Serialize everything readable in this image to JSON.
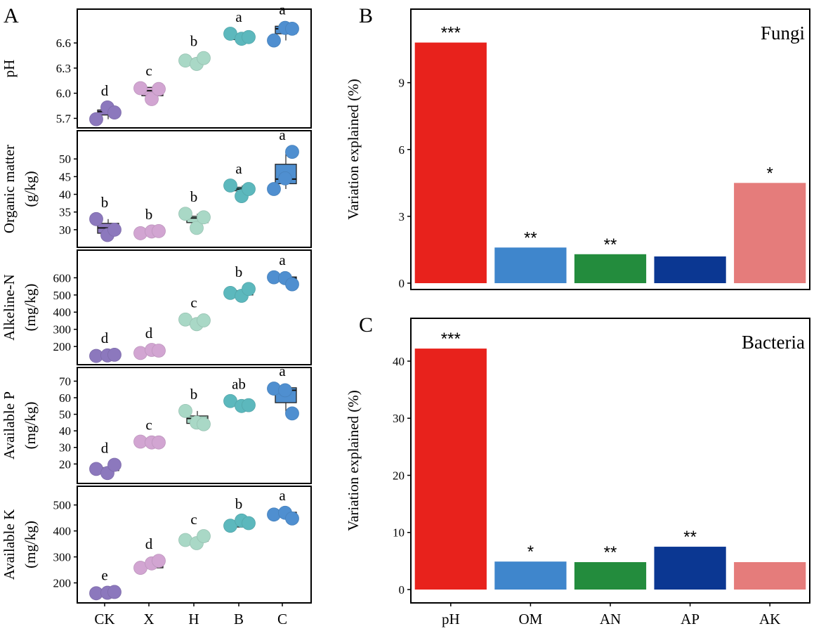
{
  "chart_data": [
    {
      "id": "A",
      "panel_label": "A",
      "type": "box-dot",
      "groups": [
        "CK",
        "X",
        "H",
        "B",
        "C"
      ],
      "group_colors": {
        "CK": "#8c78bd",
        "X": "#d2a5d2",
        "H": "#a9d8c6",
        "B": "#5cb8bd",
        "C": "#4f8fd0"
      },
      "subplots": [
        {
          "name": "ph",
          "ylabel_lines": [
            "pH"
          ],
          "ylim": [
            5.67,
            6.92
          ],
          "yticks": [
            5.7,
            6.0,
            6.3,
            6.6
          ],
          "ytick_labels": [
            "5.7",
            "6.0",
            "6.3",
            "6.6"
          ],
          "groups": [
            {
              "group": "CK",
              "points": [
                5.69,
                5.83,
                5.77
              ],
              "box": [
                5.74,
                5.78,
                5.8
              ],
              "letter": "d"
            },
            {
              "group": "X",
              "points": [
                6.06,
                5.93,
                6.05
              ],
              "box": [
                5.97,
                6.03,
                6.07
              ],
              "letter": "c"
            },
            {
              "group": "H",
              "points": [
                6.39,
                6.35,
                6.42
              ],
              "box": [
                6.37,
                6.39,
                6.41
              ],
              "letter": "b"
            },
            {
              "group": "B",
              "points": [
                6.71,
                6.65,
                6.67
              ],
              "box": [
                6.64,
                6.66,
                6.68
              ],
              "letter": "a"
            },
            {
              "group": "C",
              "points": [
                6.63,
                6.78,
                6.77
              ],
              "box": [
                6.71,
                6.77,
                6.8
              ],
              "letter": "a"
            }
          ]
        },
        {
          "name": "organic-matter",
          "ylabel_lines": [
            "Organic matter",
            "(g/kg)"
          ],
          "ylim": [
            27,
            56
          ],
          "yticks": [
            30,
            35,
            40,
            45,
            50
          ],
          "ytick_labels": [
            "30",
            "35",
            "40",
            "45",
            "50"
          ],
          "groups": [
            {
              "group": "CK",
              "points": [
                33,
                28.5,
                30
              ],
              "box": [
                29,
                30.5,
                31.8
              ],
              "letter": "b"
            },
            {
              "group": "X",
              "points": [
                29,
                29.5,
                29.6
              ],
              "box": [
                29.2,
                29.4,
                29.6
              ],
              "letter": "b"
            },
            {
              "group": "H",
              "points": [
                34.5,
                30.5,
                33.5
              ],
              "box": [
                32,
                33.3,
                33.8
              ],
              "letter": "b"
            },
            {
              "group": "B",
              "points": [
                42.5,
                39.5,
                41.5
              ],
              "box": [
                41,
                41.5,
                42
              ],
              "letter": "a"
            },
            {
              "group": "C",
              "points": [
                41.5,
                44.5,
                52
              ],
              "box": [
                43,
                44.3,
                48.5
              ],
              "letter": "a"
            }
          ]
        },
        {
          "name": "alkeline-n",
          "ylabel_lines": [
            "Alkeline-N",
            "(mg/kg)"
          ],
          "ylim": [
            135,
            720
          ],
          "yticks": [
            200,
            300,
            400,
            500,
            600
          ],
          "ytick_labels": [
            "200",
            "300",
            "400",
            "500",
            "600"
          ],
          "groups": [
            {
              "group": "CK",
              "points": [
                145,
                148,
                152
              ],
              "box": [
                145,
                148,
                150
              ],
              "letter": "d"
            },
            {
              "group": "X",
              "points": [
                162,
                180,
                176
              ],
              "box": [
                170,
                173,
                176
              ],
              "letter": "d"
            },
            {
              "group": "H",
              "points": [
                357,
                330,
                352
              ],
              "box": [
                340,
                345,
                352
              ],
              "letter": "c"
            },
            {
              "group": "B",
              "points": [
                512,
                495,
                535
              ],
              "box": [
                500,
                510,
                525
              ],
              "letter": "b"
            },
            {
              "group": "C",
              "points": [
                603,
                598,
                562
              ],
              "box": [
                585,
                598,
                605
              ],
              "letter": "a"
            }
          ]
        },
        {
          "name": "available-p",
          "ylabel_lines": [
            "Available P",
            "(mg/kg)"
          ],
          "ylim": [
            12.5,
            74
          ],
          "yticks": [
            20,
            30,
            40,
            50,
            60,
            70
          ],
          "ytick_labels": [
            "20",
            "30",
            "40",
            "50",
            "60",
            "70"
          ],
          "groups": [
            {
              "group": "CK",
              "points": [
                17,
                14.5,
                19.5
              ],
              "box": [
                16,
                16.8,
                17.8
              ],
              "letter": "d"
            },
            {
              "group": "X",
              "points": [
                33.5,
                33,
                33
              ],
              "box": [
                33,
                33.3,
                33.6
              ],
              "letter": "c"
            },
            {
              "group": "H",
              "points": [
                52,
                45,
                44
              ],
              "box": [
                44.5,
                47.5,
                49
              ],
              "letter": "b"
            },
            {
              "group": "B",
              "points": [
                58,
                55,
                55.5
              ],
              "box": [
                55,
                56,
                56.5
              ],
              "letter": "ab"
            },
            {
              "group": "C",
              "points": [
                65.5,
                64.5,
                50.5
              ],
              "box": [
                57,
                64.5,
                66
              ],
              "letter": "a"
            }
          ]
        },
        {
          "name": "available-k",
          "ylabel_lines": [
            "Available K",
            "(mg/kg)"
          ],
          "ylim": [
            150,
            545
          ],
          "yticks": [
            200,
            300,
            400,
            500
          ],
          "ytick_labels": [
            "200",
            "300",
            "400",
            "500"
          ],
          "groups": [
            {
              "group": "CK",
              "points": [
                160,
                162,
                165
              ],
              "box": [
                160,
                162,
                165
              ],
              "letter": "e"
            },
            {
              "group": "X",
              "points": [
                258,
                275,
                285
              ],
              "box": [
                258,
                264,
                272
              ],
              "letter": "d"
            },
            {
              "group": "H",
              "points": [
                365,
                353,
                380
              ],
              "box": [
                360,
                365,
                370
              ],
              "letter": "c"
            },
            {
              "group": "B",
              "points": [
                420,
                440,
                430
              ],
              "box": [
                415,
                425,
                430
              ],
              "letter": "b"
            },
            {
              "group": "C",
              "points": [
                463,
                470,
                448
              ],
              "box": [
                460,
                466,
                472
              ],
              "letter": "a"
            }
          ]
        }
      ]
    },
    {
      "id": "B",
      "panel_label": "B",
      "type": "bar",
      "title": "Fungi",
      "ylabel": "Variation explained (%)",
      "categories": [
        "pH",
        "OM",
        "AN",
        "AP",
        "AK"
      ],
      "values": [
        10.8,
        1.6,
        1.3,
        1.2,
        4.5
      ],
      "significance": [
        "***",
        "**",
        "**",
        "",
        "*"
      ],
      "colors": [
        "#e8221c",
        "#3f86cc",
        "#238c3d",
        "#0b3792",
        "#e57c7b"
      ],
      "ylim": [
        0,
        12.3
      ],
      "yticks": [
        0,
        3,
        6,
        9
      ],
      "ytick_labels": [
        "0",
        "3",
        "6",
        "9"
      ]
    },
    {
      "id": "C",
      "panel_label": "C",
      "type": "bar",
      "title": "Bacteria",
      "ylabel": "Variation explained (%)",
      "categories": [
        "pH",
        "OM",
        "AN",
        "AP",
        "AK"
      ],
      "values": [
        42.2,
        4.9,
        4.8,
        7.5,
        4.8
      ],
      "significance": [
        "***",
        "*",
        "**",
        "**",
        ""
      ],
      "colors": [
        "#e8221c",
        "#3f86cc",
        "#238c3d",
        "#0b3792",
        "#e57c7b"
      ],
      "ylim": [
        0,
        47.5
      ],
      "yticks": [
        0,
        10,
        20,
        30,
        40
      ],
      "ytick_labels": [
        "0",
        "10",
        "20",
        "30",
        "40"
      ]
    }
  ]
}
